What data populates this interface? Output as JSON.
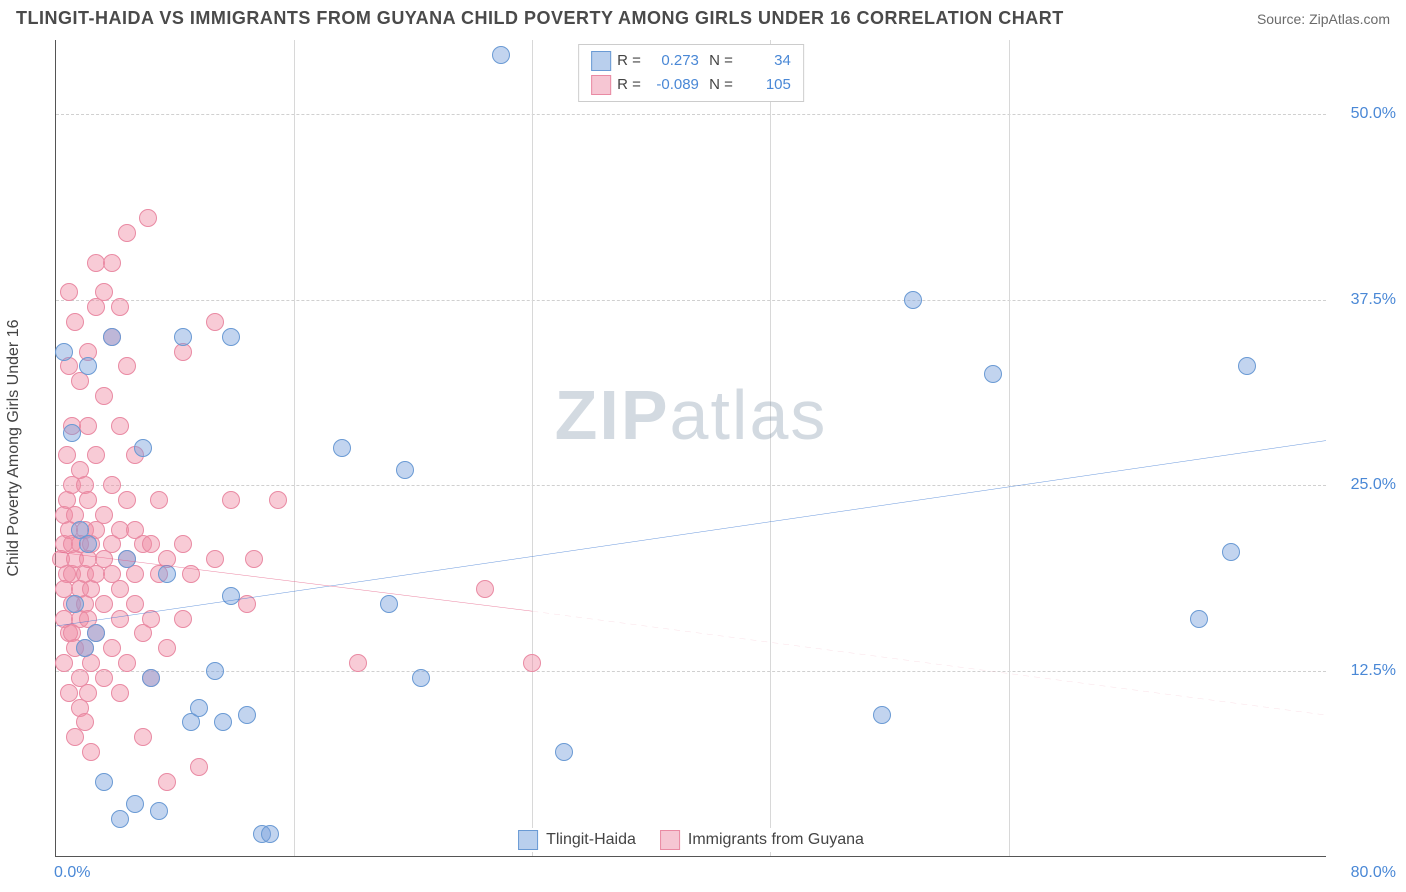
{
  "header": {
    "title": "TLINGIT-HAIDA VS IMMIGRANTS FROM GUYANA CHILD POVERTY AMONG GIRLS UNDER 16 CORRELATION CHART",
    "source": "Source: ZipAtlas.com"
  },
  "chart": {
    "type": "scatter",
    "ylabel": "Child Poverty Among Girls Under 16",
    "xlim": [
      0,
      80
    ],
    "ylim": [
      0,
      55
    ],
    "x_ticks": {
      "min_label": "0.0%",
      "max_label": "80.0%"
    },
    "y_ticks": [
      {
        "value": 12.5,
        "label": "12.5%"
      },
      {
        "value": 25.0,
        "label": "25.0%"
      },
      {
        "value": 37.5,
        "label": "37.5%"
      },
      {
        "value": 50.0,
        "label": "50.0%"
      }
    ],
    "vgrid_x": [
      15,
      30,
      45,
      60
    ],
    "background_color": "#ffffff",
    "grid_color": "#d0d0d0",
    "series": [
      {
        "name": "Tlingit-Haida",
        "color_fill": "rgba(120,160,220,0.45)",
        "color_stroke": "#6a9ad4",
        "swatch_fill": "#b9cfed",
        "swatch_stroke": "#6a9ad4",
        "r_value": "0.273",
        "n_value": "34",
        "trend": {
          "x1": 0,
          "y1": 15.5,
          "x2": 80,
          "y2": 28.0,
          "stroke": "#2f6fd0",
          "width": 3,
          "dash": "none"
        },
        "points": [
          [
            0.5,
            34
          ],
          [
            1,
            28.5
          ],
          [
            1.2,
            17
          ],
          [
            1.5,
            22
          ],
          [
            1.8,
            14
          ],
          [
            2,
            21
          ],
          [
            2,
            33
          ],
          [
            2.5,
            15
          ],
          [
            3,
            5
          ],
          [
            3.5,
            35
          ],
          [
            4,
            2.5
          ],
          [
            4.5,
            20
          ],
          [
            5,
            3.5
          ],
          [
            5.5,
            27.5
          ],
          [
            6,
            12
          ],
          [
            6.5,
            3
          ],
          [
            7,
            19
          ],
          [
            8,
            35
          ],
          [
            8.5,
            9
          ],
          [
            9,
            10
          ],
          [
            10,
            12.5
          ],
          [
            10.5,
            9
          ],
          [
            11,
            17.5
          ],
          [
            11,
            35
          ],
          [
            12,
            9.5
          ],
          [
            13,
            1.5
          ],
          [
            13.5,
            1.5
          ],
          [
            18,
            27.5
          ],
          [
            21,
            17
          ],
          [
            22,
            26
          ],
          [
            23,
            12
          ],
          [
            28,
            54
          ],
          [
            32,
            7
          ],
          [
            52,
            9.5
          ],
          [
            54,
            37.5
          ],
          [
            59,
            32.5
          ],
          [
            72,
            16
          ],
          [
            74,
            20.5
          ],
          [
            75,
            33
          ]
        ]
      },
      {
        "name": "Immigrants from Guyana",
        "color_fill": "rgba(240,140,165,0.45)",
        "color_stroke": "#e98aa3",
        "swatch_fill": "#f6c6d3",
        "swatch_stroke": "#e98aa3",
        "r_value": "-0.089",
        "n_value": "105",
        "trend_solid": {
          "x1": 0,
          "y1": 20.5,
          "x2": 30,
          "y2": 16.5,
          "stroke": "#e3547d",
          "width": 3
        },
        "trend_dash": {
          "x1": 30,
          "y1": 16.5,
          "x2": 80,
          "y2": 9.5,
          "stroke": "#f0a8bb",
          "width": 1.5
        },
        "points": [
          [
            0.3,
            20
          ],
          [
            0.5,
            18
          ],
          [
            0.5,
            21
          ],
          [
            0.5,
            16
          ],
          [
            0.5,
            23
          ],
          [
            0.5,
            13
          ],
          [
            0.7,
            19
          ],
          [
            0.7,
            24
          ],
          [
            0.7,
            27
          ],
          [
            0.8,
            15
          ],
          [
            0.8,
            22
          ],
          [
            0.8,
            33
          ],
          [
            0.8,
            11
          ],
          [
            0.8,
            38
          ],
          [
            1,
            19
          ],
          [
            1,
            21
          ],
          [
            1,
            17
          ],
          [
            1,
            15
          ],
          [
            1,
            25
          ],
          [
            1,
            29
          ],
          [
            1.2,
            20
          ],
          [
            1.2,
            23
          ],
          [
            1.2,
            14
          ],
          [
            1.2,
            8
          ],
          [
            1.2,
            36
          ],
          [
            1.5,
            18
          ],
          [
            1.5,
            21
          ],
          [
            1.5,
            16
          ],
          [
            1.5,
            26
          ],
          [
            1.5,
            12
          ],
          [
            1.5,
            32
          ],
          [
            1.5,
            10
          ],
          [
            1.8,
            19
          ],
          [
            1.8,
            22
          ],
          [
            1.8,
            17
          ],
          [
            1.8,
            14
          ],
          [
            1.8,
            25
          ],
          [
            1.8,
            9
          ],
          [
            2,
            20
          ],
          [
            2,
            24
          ],
          [
            2,
            16
          ],
          [
            2,
            11
          ],
          [
            2,
            29
          ],
          [
            2,
            34
          ],
          [
            2.2,
            18
          ],
          [
            2.2,
            21
          ],
          [
            2.2,
            13
          ],
          [
            2.2,
            7
          ],
          [
            2.5,
            19
          ],
          [
            2.5,
            22
          ],
          [
            2.5,
            15
          ],
          [
            2.5,
            27
          ],
          [
            2.5,
            37
          ],
          [
            2.5,
            40
          ],
          [
            3,
            20
          ],
          [
            3,
            17
          ],
          [
            3,
            23
          ],
          [
            3,
            12
          ],
          [
            3,
            31
          ],
          [
            3,
            38
          ],
          [
            3.5,
            19
          ],
          [
            3.5,
            21
          ],
          [
            3.5,
            14
          ],
          [
            3.5,
            25
          ],
          [
            3.5,
            35
          ],
          [
            3.5,
            40
          ],
          [
            4,
            18
          ],
          [
            4,
            22
          ],
          [
            4,
            16
          ],
          [
            4,
            11
          ],
          [
            4,
            29
          ],
          [
            4,
            37
          ],
          [
            4.5,
            20
          ],
          [
            4.5,
            24
          ],
          [
            4.5,
            13
          ],
          [
            4.5,
            33
          ],
          [
            4.5,
            42
          ],
          [
            5,
            19
          ],
          [
            5,
            17
          ],
          [
            5,
            22
          ],
          [
            5,
            27
          ],
          [
            5.5,
            21
          ],
          [
            5.5,
            15
          ],
          [
            5.5,
            8
          ],
          [
            5.8,
            43
          ],
          [
            6,
            16
          ],
          [
            6,
            21
          ],
          [
            6,
            12
          ],
          [
            6.5,
            19
          ],
          [
            6.5,
            24
          ],
          [
            7,
            20
          ],
          [
            7,
            5
          ],
          [
            7,
            14
          ],
          [
            8,
            16
          ],
          [
            8,
            34
          ],
          [
            8,
            21
          ],
          [
            8.5,
            19
          ],
          [
            9,
            6
          ],
          [
            10,
            20
          ],
          [
            10,
            36
          ],
          [
            11,
            24
          ],
          [
            12,
            17
          ],
          [
            12.5,
            20
          ],
          [
            14,
            24
          ],
          [
            19,
            13
          ],
          [
            27,
            18
          ],
          [
            30,
            13
          ]
        ]
      }
    ],
    "watermark": {
      "prefix": "ZIP",
      "suffix": "atlas"
    }
  },
  "legend_bottom": {
    "series1_label": "Tlingit-Haida",
    "series2_label": "Immigrants from Guyana"
  }
}
